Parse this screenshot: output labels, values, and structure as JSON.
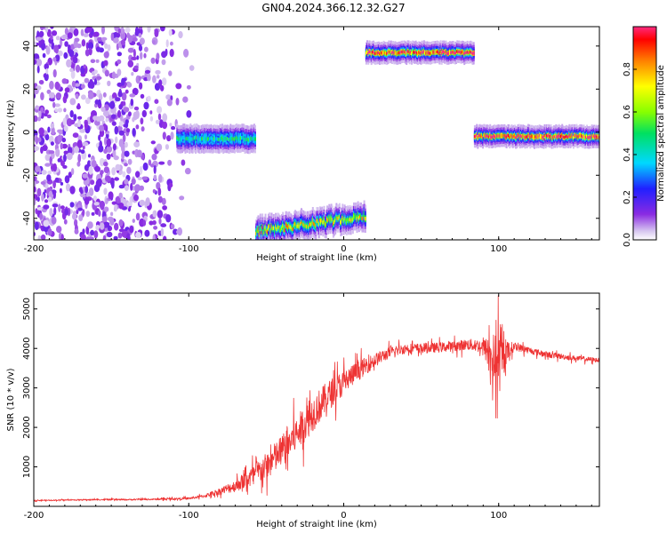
{
  "figure": {
    "title": "GN04.2024.366.12.32.G27"
  },
  "chart_data": [
    {
      "type": "heatmap",
      "xlabel": "Height of straight line (km)",
      "ylabel": "Frequency (Hz)",
      "xlim": [
        -200,
        165
      ],
      "ylim": [
        -50,
        49
      ],
      "xticks": [
        -200,
        -100,
        0,
        100
      ],
      "yticks": [
        -40,
        -20,
        0,
        20,
        40
      ],
      "colorbar": {
        "label": "Normalized spectral amplitude",
        "range": [
          0,
          1
        ],
        "ticks": [
          0.0,
          0.2,
          0.4,
          0.6,
          0.8
        ],
        "tick_labels": [
          "0.0",
          "0.2",
          "0.4",
          "0.6",
          "0.8"
        ],
        "colormap": "rainbow (white-violet-blue-cyan-green-yellow-red-magenta)"
      },
      "features": [
        {
          "kind": "broadband noise",
          "x_range": [
            -200,
            -95
          ],
          "freq_range": [
            -50,
            49
          ],
          "amplitude": 0.1
        },
        {
          "kind": "stripe",
          "x_range": [
            -108,
            -57
          ],
          "freq_center": -3,
          "freq_width": 5,
          "amplitude": 0.45
        },
        {
          "kind": "stripe",
          "x_range": [
            -57,
            14
          ],
          "freq_start": -46,
          "freq_end": -39,
          "freq_width": 5,
          "amplitude": 0.7
        },
        {
          "kind": "stripe",
          "x_range": [
            14,
            84
          ],
          "freq_center": 37,
          "freq_width": 4,
          "amplitude": 0.95
        },
        {
          "kind": "stripe",
          "x_range": [
            84,
            165
          ],
          "freq_center": -2,
          "freq_width": 4,
          "amplitude": 0.95
        }
      ],
      "grid": false
    },
    {
      "type": "line",
      "xlabel": "Height of straight line (km)",
      "ylabel": "SNR (10 * v/v)",
      "xlim": [
        -200,
        165
      ],
      "ylim": [
        0,
        5400
      ],
      "xticks": [
        -200,
        -100,
        0,
        100
      ],
      "yticks": [
        1000,
        2000,
        3000,
        4000,
        5000
      ],
      "series": [
        {
          "color": "#ee3333",
          "x": [
            -200,
            -180,
            -160,
            -140,
            -120,
            -100,
            -90,
            -80,
            -70,
            -60,
            -50,
            -40,
            -30,
            -20,
            -10,
            0,
            10,
            20,
            30,
            40,
            50,
            60,
            70,
            80,
            90,
            95,
            100,
            105,
            110,
            120,
            130,
            140,
            150,
            165
          ],
          "y": [
            150,
            160,
            170,
            170,
            180,
            200,
            260,
            380,
            520,
            750,
            1000,
            1400,
            1850,
            2350,
            2800,
            3150,
            3450,
            3700,
            3900,
            4000,
            4000,
            4020,
            4050,
            4100,
            4050,
            3800,
            3600,
            3900,
            4050,
            3950,
            3850,
            3800,
            3750,
            3700
          ],
          "noise_amplitude": [
            20,
            20,
            25,
            25,
            30,
            40,
            60,
            120,
            220,
            350,
            500,
            600,
            650,
            650,
            550,
            450,
            350,
            250,
            200,
            180,
            180,
            180,
            180,
            200,
            250,
            800,
            1200,
            400,
            150,
            120,
            110,
            100,
            90,
            80
          ]
        }
      ],
      "grid": false
    }
  ]
}
